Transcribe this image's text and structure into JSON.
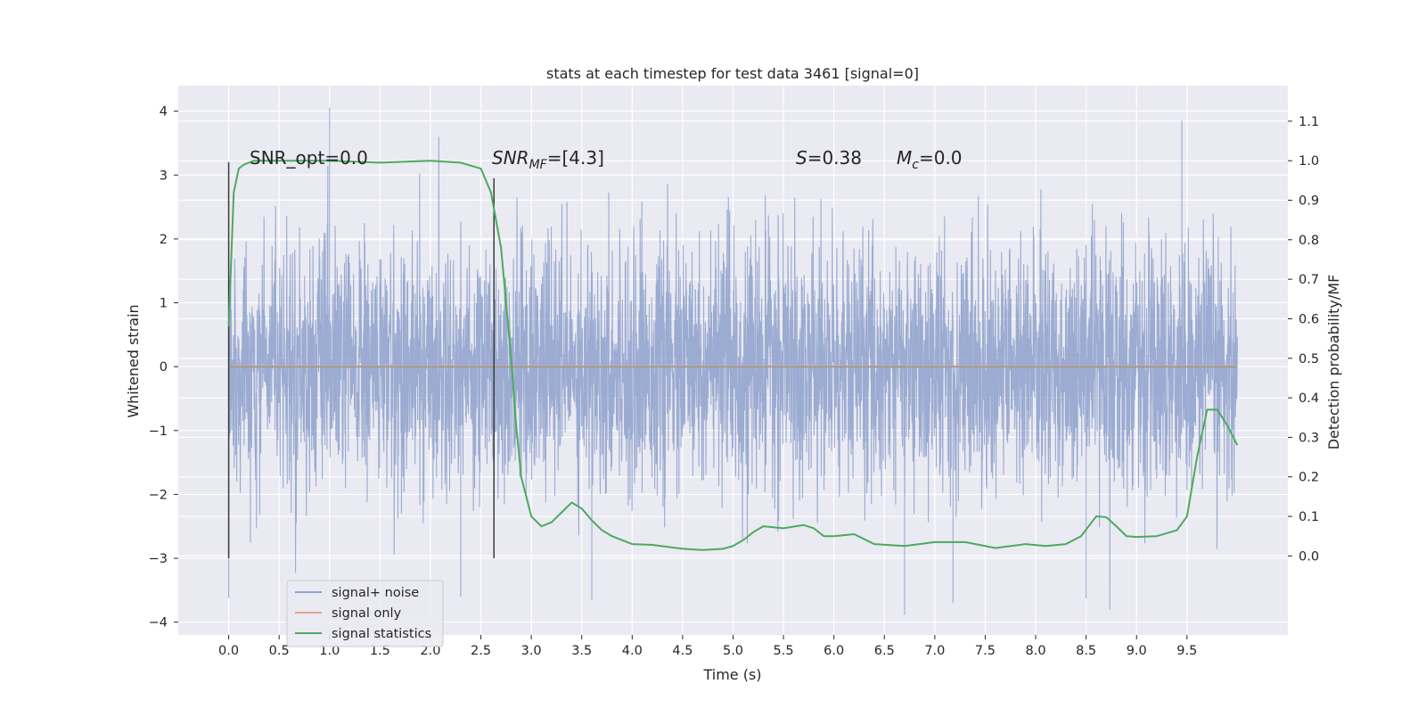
{
  "chart_data": {
    "type": "line",
    "title": "stats at each timestep for test data 3461 [signal=0]",
    "xlabel": "Time (s)",
    "ylabel_left": "Whitened strain",
    "ylabel_right": "Detection probability/MF",
    "xlim": [
      -0.5,
      10.5
    ],
    "ylim_left": [
      -4.2,
      4.4
    ],
    "ylim_right": [
      -0.2,
      1.19
    ],
    "x_ticks": [
      "0.0",
      "0.5",
      "1.0",
      "1.5",
      "2.0",
      "2.5",
      "3.0",
      "3.5",
      "4.0",
      "4.5",
      "5.0",
      "5.5",
      "6.0",
      "6.5",
      "7.0",
      "7.5",
      "8.0",
      "8.5",
      "9.0",
      "9.5"
    ],
    "y_ticks_left": [
      "−4",
      "−3",
      "−2",
      "−1",
      "0",
      "1",
      "2",
      "3",
      "4"
    ],
    "y_ticks_right": [
      "0.0",
      "0.1",
      "0.2",
      "0.3",
      "0.4",
      "0.5",
      "0.6",
      "0.7",
      "0.8",
      "0.9",
      "1.0",
      "1.1"
    ],
    "grid": true,
    "legend_position": "lower-left",
    "annotations": {
      "snr_opt": "SNR_opt=0.0",
      "snr_mf_base": "SNR",
      "snr_mf_sub": "MF",
      "snr_mf_value": "=[4.3]",
      "s_symbol": "S",
      "s_value": "=0.38",
      "mc_base": "M",
      "mc_sub": "c",
      "mc_value": "=0.0"
    },
    "vertical_markers": [
      {
        "x": 0.0,
        "y_range": [
          -3.0,
          3.2
        ]
      },
      {
        "x": 2.63,
        "y_range": [
          -3.0,
          2.95
        ]
      }
    ],
    "series": [
      {
        "name": "signal+ noise",
        "color": "#8da0cb",
        "axis": "left",
        "x_range": [
          0.0,
          10.0
        ],
        "typical_amplitude": 1.3,
        "peak_range": [
          -3.9,
          4.05
        ]
      },
      {
        "name": "signal only",
        "color": "#e8a38f",
        "axis": "left",
        "x": [
          0.0,
          10.0
        ],
        "y": [
          0.0,
          0.0
        ]
      },
      {
        "name": "signal statistics",
        "color": "#4caa5f",
        "axis": "right",
        "x": [
          0.0,
          0.05,
          0.1,
          0.15,
          0.25,
          0.5,
          1.0,
          1.5,
          2.0,
          2.3,
          2.5,
          2.6,
          2.7,
          2.8,
          2.85,
          2.9,
          3.0,
          3.1,
          3.2,
          3.3,
          3.4,
          3.5,
          3.6,
          3.7,
          3.8,
          3.9,
          4.0,
          4.2,
          4.5,
          4.7,
          4.9,
          5.0,
          5.1,
          5.2,
          5.3,
          5.5,
          5.7,
          5.8,
          5.9,
          6.0,
          6.2,
          6.4,
          6.7,
          7.0,
          7.3,
          7.6,
          7.9,
          8.1,
          8.3,
          8.45,
          8.6,
          8.7,
          8.8,
          8.9,
          9.0,
          9.2,
          9.4,
          9.5,
          9.6,
          9.7,
          9.8,
          9.9,
          10.0
        ],
        "y": [
          0.58,
          0.92,
          0.98,
          0.99,
          1.0,
          1.0,
          1.0,
          0.995,
          1.0,
          0.995,
          0.98,
          0.92,
          0.78,
          0.5,
          0.33,
          0.2,
          0.1,
          0.075,
          0.085,
          0.11,
          0.135,
          0.12,
          0.09,
          0.065,
          0.05,
          0.04,
          0.03,
          0.028,
          0.018,
          0.015,
          0.018,
          0.025,
          0.04,
          0.06,
          0.075,
          0.07,
          0.078,
          0.07,
          0.05,
          0.05,
          0.055,
          0.03,
          0.025,
          0.035,
          0.035,
          0.02,
          0.03,
          0.025,
          0.03,
          0.05,
          0.1,
          0.098,
          0.075,
          0.05,
          0.048,
          0.05,
          0.065,
          0.1,
          0.25,
          0.37,
          0.37,
          0.33,
          0.28
        ]
      }
    ]
  }
}
